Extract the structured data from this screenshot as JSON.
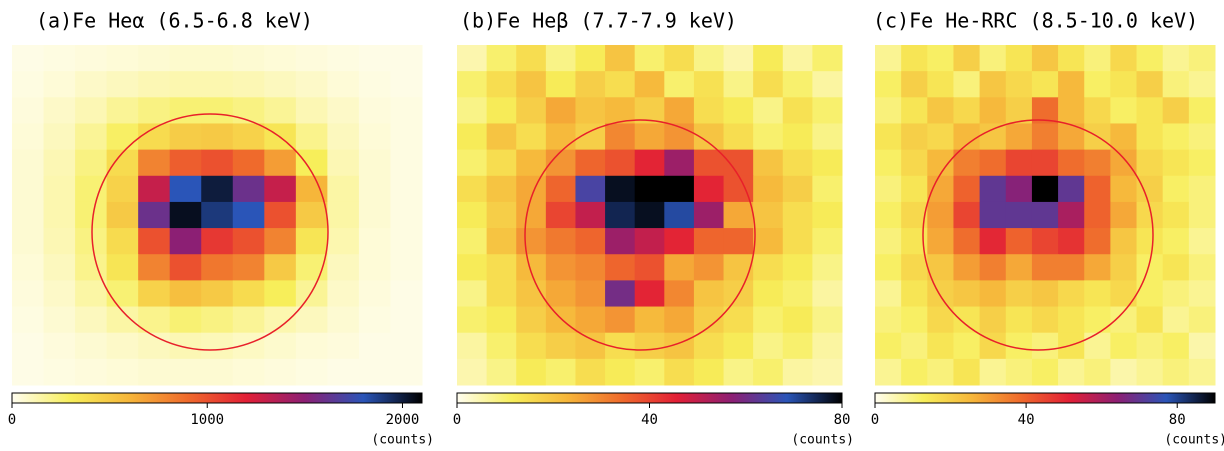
{
  "chart_data": [
    {
      "type": "heatmap",
      "title": "(a)Fe Heα (6.5-6.8 keV)",
      "colorbar_label": "(counts)",
      "clim": [
        0,
        2100
      ],
      "cticks": [
        0,
        1000,
        2000
      ],
      "colormap": [
        "#fffdf0",
        "#f7ee5a",
        "#f6b63a",
        "#ef6a2c",
        "#e21f36",
        "#8c1f74",
        "#2a55b8",
        "#000000"
      ],
      "z": [
        [
          20,
          30,
          40,
          50,
          60,
          70,
          70,
          60,
          50,
          40,
          30,
          20,
          20
        ],
        [
          30,
          50,
          80,
          100,
          120,
          130,
          130,
          120,
          100,
          80,
          50,
          30,
          20
        ],
        [
          40,
          80,
          120,
          180,
          220,
          250,
          250,
          220,
          180,
          120,
          80,
          40,
          30
        ],
        [
          50,
          100,
          180,
          280,
          400,
          480,
          500,
          450,
          350,
          200,
          100,
          50,
          30
        ],
        [
          60,
          120,
          220,
          400,
          800,
          950,
          1000,
          900,
          700,
          300,
          120,
          60,
          30
        ],
        [
          60,
          130,
          250,
          450,
          1300,
          1800,
          2000,
          1600,
          1300,
          600,
          150,
          60,
          30
        ],
        [
          60,
          130,
          250,
          500,
          1600,
          2050,
          1900,
          1800,
          1000,
          500,
          150,
          60,
          30
        ],
        [
          60,
          120,
          220,
          400,
          1000,
          1500,
          1100,
          1000,
          800,
          350,
          130,
          50,
          30
        ],
        [
          50,
          100,
          200,
          350,
          800,
          1000,
          850,
          800,
          500,
          250,
          100,
          50,
          30
        ],
        [
          40,
          80,
          150,
          250,
          450,
          550,
          500,
          400,
          300,
          180,
          80,
          40,
          20
        ],
        [
          30,
          60,
          100,
          150,
          200,
          250,
          220,
          180,
          130,
          100,
          60,
          30,
          20
        ],
        [
          20,
          40,
          60,
          80,
          100,
          120,
          110,
          90,
          70,
          50,
          40,
          20,
          20
        ],
        [
          20,
          30,
          40,
          50,
          60,
          60,
          60,
          50,
          40,
          30,
          20,
          20,
          20
        ]
      ]
    },
    {
      "type": "heatmap",
      "title": "(b)Fe Heβ (7.7-7.9 keV)",
      "colorbar_label": "(counts)",
      "clim": [
        0,
        80
      ],
      "cticks": [
        0,
        40,
        80
      ],
      "colormap": [
        "#fffdf0",
        "#f7ee5a",
        "#f6b63a",
        "#ef6a2c",
        "#e21f36",
        "#8c1f74",
        "#2a55b8",
        "#000000"
      ],
      "z": [
        [
          5,
          10,
          15,
          8,
          12,
          20,
          10,
          15,
          8,
          5,
          12,
          6,
          10
        ],
        [
          10,
          15,
          20,
          12,
          18,
          15,
          22,
          10,
          14,
          8,
          15,
          10,
          6
        ],
        [
          8,
          12,
          18,
          25,
          20,
          22,
          18,
          25,
          15,
          12,
          8,
          14,
          10
        ],
        [
          12,
          20,
          15,
          22,
          18,
          30,
          25,
          28,
          20,
          15,
          10,
          12,
          8
        ],
        [
          10,
          15,
          22,
          28,
          35,
          38,
          45,
          55,
          38,
          38,
          20,
          15,
          12
        ],
        [
          15,
          20,
          25,
          35,
          65,
          78,
          80,
          80,
          45,
          38,
          22,
          18,
          10
        ],
        [
          12,
          18,
          25,
          40,
          50,
          75,
          78,
          70,
          55,
          25,
          20,
          15,
          12
        ],
        [
          10,
          20,
          28,
          32,
          35,
          55,
          50,
          45,
          35,
          35,
          22,
          15,
          10
        ],
        [
          12,
          15,
          22,
          28,
          30,
          35,
          38,
          25,
          28,
          20,
          15,
          12,
          8
        ],
        [
          8,
          15,
          20,
          25,
          28,
          60,
          45,
          30,
          20,
          18,
          12,
          10,
          6
        ],
        [
          10,
          12,
          18,
          22,
          25,
          28,
          22,
          25,
          18,
          15,
          10,
          12,
          8
        ],
        [
          6,
          10,
          15,
          18,
          20,
          15,
          18,
          20,
          15,
          12,
          8,
          10,
          6
        ],
        [
          5,
          8,
          12,
          10,
          15,
          12,
          10,
          15,
          12,
          8,
          10,
          6,
          5
        ]
      ]
    },
    {
      "type": "heatmap",
      "title": "(c)Fe He-RRC (8.5-10.0 keV)",
      "colorbar_label": "(counts)",
      "clim": [
        0,
        90
      ],
      "cticks": [
        0,
        40,
        80
      ],
      "colormap": [
        "#fffdf0",
        "#f7ee5a",
        "#f6b63a",
        "#ef6a2c",
        "#e21f36",
        "#8c1f74",
        "#2a55b8",
        "#000000"
      ],
      "z": [
        [
          8,
          15,
          12,
          20,
          10,
          15,
          22,
          15,
          10,
          18,
          12,
          8,
          10
        ],
        [
          12,
          20,
          15,
          10,
          22,
          18,
          15,
          25,
          12,
          15,
          20,
          10,
          8
        ],
        [
          10,
          15,
          22,
          18,
          25,
          20,
          38,
          25,
          18,
          12,
          15,
          20,
          12
        ],
        [
          15,
          20,
          18,
          25,
          22,
          28,
          35,
          28,
          20,
          25,
          15,
          12,
          10
        ],
        [
          12,
          18,
          25,
          35,
          38,
          45,
          45,
          38,
          35,
          28,
          18,
          15,
          12
        ],
        [
          10,
          15,
          28,
          40,
          70,
          65,
          90,
          70,
          40,
          25,
          20,
          12,
          10
        ],
        [
          12,
          18,
          30,
          45,
          70,
          70,
          70,
          60,
          40,
          28,
          18,
          15,
          10
        ],
        [
          10,
          15,
          28,
          38,
          50,
          40,
          45,
          48,
          38,
          22,
          15,
          12,
          8
        ],
        [
          12,
          18,
          22,
          30,
          35,
          28,
          35,
          35,
          28,
          20,
          12,
          15,
          10
        ],
        [
          8,
          15,
          20,
          22,
          25,
          20,
          22,
          18,
          15,
          18,
          12,
          10,
          8
        ],
        [
          10,
          12,
          18,
          15,
          20,
          15,
          18,
          15,
          12,
          10,
          15,
          8,
          10
        ],
        [
          12,
          10,
          15,
          12,
          18,
          12,
          10,
          15,
          8,
          12,
          10,
          12,
          6
        ],
        [
          8,
          12,
          10,
          15,
          8,
          10,
          12,
          8,
          10,
          6,
          8,
          10,
          8
        ]
      ]
    }
  ]
}
